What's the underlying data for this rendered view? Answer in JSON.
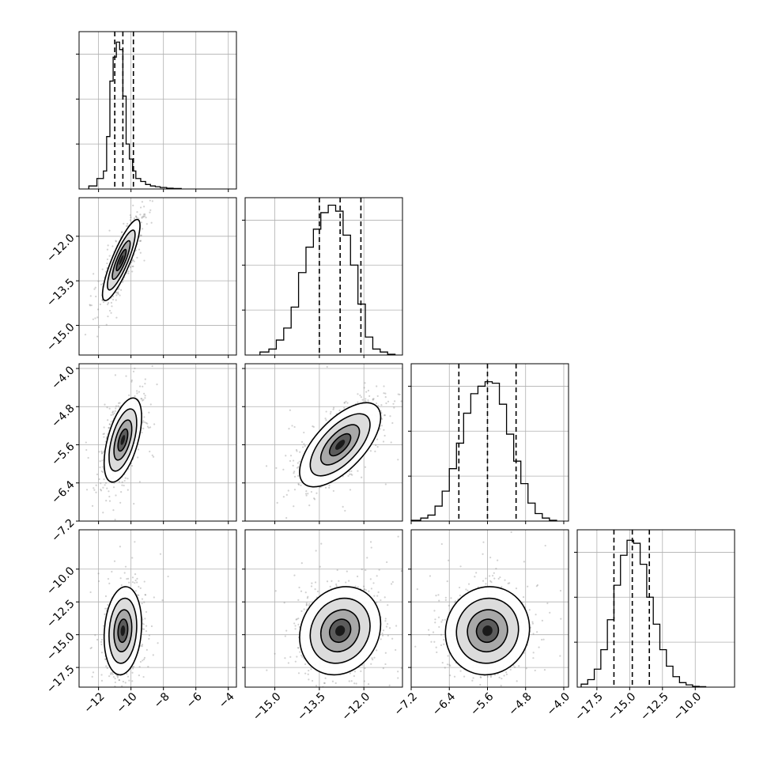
{
  "chart_data": {
    "type": "corner",
    "grid": true,
    "parameters": [
      {
        "range": [
          -13.2,
          -3.5
        ],
        "ticks": [
          -12,
          -10,
          -8,
          -6,
          -4
        ],
        "tick_labels": [
          "−12",
          "−10",
          "−8",
          "−6",
          "−4"
        ],
        "quantiles": [
          -11.0,
          -10.5,
          -9.85
        ],
        "hist_edges": [
          -12.6,
          -12.1,
          -11.7,
          -11.5,
          -11.3,
          -11.1,
          -10.9,
          -10.7,
          -10.5,
          -10.3,
          -10.1,
          -9.9,
          -9.7,
          -9.4,
          -9.1,
          -8.8,
          -8.5,
          -8.2,
          -7.8,
          -7.4,
          -6.9
        ],
        "hist_counts": [
          0.02,
          0.07,
          0.12,
          0.35,
          0.72,
          0.88,
          0.98,
          0.93,
          0.62,
          0.3,
          0.2,
          0.12,
          0.07,
          0.05,
          0.03,
          0.02,
          0.015,
          0.01,
          0.005,
          0.003
        ],
        "hist_yticks": [
          0.3,
          0.6,
          0.9
        ]
      },
      {
        "range": [
          -16.0,
          -10.7
        ],
        "ticks": [
          -15.0,
          -13.5,
          -12.0
        ],
        "tick_labels": [
          "−15.0",
          "−13.5",
          "−12.0"
        ],
        "quantiles": [
          -13.5,
          -12.8,
          -12.1
        ],
        "hist_edges": [
          -15.5,
          -15.2,
          -14.95,
          -14.7,
          -14.45,
          -14.2,
          -13.95,
          -13.7,
          -13.45,
          -13.2,
          -12.95,
          -12.7,
          -12.45,
          -12.2,
          -11.95,
          -11.7,
          -11.45,
          -11.2,
          -10.95
        ],
        "hist_counts": [
          0.02,
          0.04,
          0.1,
          0.18,
          0.32,
          0.55,
          0.72,
          0.84,
          0.95,
          1.0,
          0.96,
          0.8,
          0.6,
          0.34,
          0.12,
          0.04,
          0.02,
          0.005
        ],
        "hist_yticks": [
          0.3,
          0.6,
          0.9
        ]
      },
      {
        "range": [
          -7.2,
          -3.9
        ],
        "ticks": [
          -7.2,
          -6.4,
          -5.6,
          -4.8,
          -4.0
        ],
        "tick_labels": [
          "−7.2",
          "−6.4",
          "−5.6",
          "−4.8",
          "−4.0"
        ],
        "quantiles": [
          -6.2,
          -5.6,
          -5.0
        ],
        "hist_edges": [
          -7.2,
          -7.0,
          -6.85,
          -6.7,
          -6.55,
          -6.4,
          -6.25,
          -6.1,
          -5.95,
          -5.8,
          -5.65,
          -5.5,
          -5.35,
          -5.2,
          -5.05,
          -4.9,
          -4.75,
          -4.6,
          -4.45,
          -4.3,
          -4.15
        ],
        "hist_counts": [
          0.005,
          0.02,
          0.04,
          0.1,
          0.2,
          0.35,
          0.52,
          0.72,
          0.85,
          0.9,
          0.93,
          0.92,
          0.78,
          0.58,
          0.4,
          0.25,
          0.12,
          0.05,
          0.02,
          0.005
        ],
        "hist_yticks": [
          0.3,
          0.6,
          0.9
        ]
      },
      {
        "range": [
          -19.0,
          -7.0
        ],
        "ticks": [
          -17.5,
          -15.0,
          -12.5,
          -10.0
        ],
        "tick_labels": [
          "−17.5",
          "−15.0",
          "−12.5",
          "−10.0"
        ],
        "quantiles": [
          -16.2,
          -14.8,
          -13.5
        ],
        "hist_edges": [
          -18.7,
          -18.2,
          -17.7,
          -17.2,
          -16.7,
          -16.2,
          -15.7,
          -15.2,
          -14.7,
          -14.2,
          -13.7,
          -13.2,
          -12.7,
          -12.2,
          -11.7,
          -11.2,
          -10.7,
          -10.2,
          -9.7,
          -9.2
        ],
        "hist_counts": [
          0.02,
          0.05,
          0.12,
          0.25,
          0.45,
          0.68,
          0.88,
          0.98,
          0.96,
          0.82,
          0.6,
          0.42,
          0.25,
          0.14,
          0.07,
          0.03,
          0.015,
          0.005,
          0.003
        ],
        "hist_yticks": [
          0.3,
          0.6,
          0.9
        ]
      }
    ],
    "pairs": [
      {
        "row": 1,
        "col": 0,
        "center": [
          -10.6,
          -12.8
        ],
        "sd": [
          0.55,
          0.65
        ],
        "corr": 0.85,
        "points": 950,
        "spread": 1.0
      },
      {
        "row": 2,
        "col": 0,
        "center": [
          -10.5,
          -5.5
        ],
        "sd": [
          0.55,
          0.42
        ],
        "corr": 0.55,
        "points": 900,
        "spread": 1.0
      },
      {
        "row": 2,
        "col": 1,
        "center": [
          -12.8,
          -5.6
        ],
        "sd": [
          0.65,
          0.42
        ],
        "corr": 0.65,
        "points": 1000,
        "spread": 1.0
      },
      {
        "row": 3,
        "col": 0,
        "center": [
          -10.5,
          -14.7
        ],
        "sd": [
          0.55,
          1.6
        ],
        "corr": 0.15,
        "points": 900,
        "spread": 1.0
      },
      {
        "row": 3,
        "col": 1,
        "center": [
          -12.8,
          -14.7
        ],
        "sd": [
          0.65,
          1.6
        ],
        "corr": 0.15,
        "points": 1000,
        "spread": 1.0
      },
      {
        "row": 3,
        "col": 2,
        "center": [
          -5.6,
          -14.7
        ],
        "sd": [
          0.42,
          1.6
        ],
        "corr": 0.05,
        "points": 1000,
        "spread": 1.0
      }
    ]
  }
}
